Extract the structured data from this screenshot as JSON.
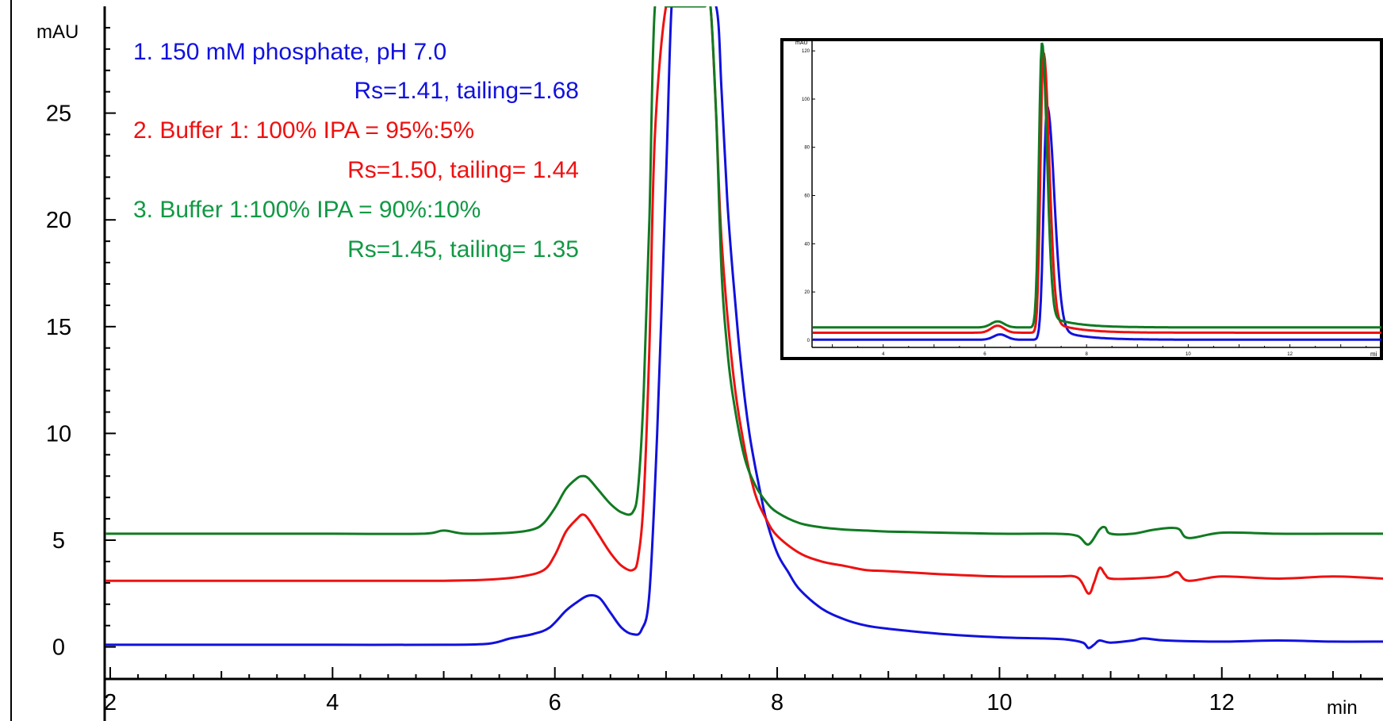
{
  "chart_data": {
    "type": "line",
    "xlabel": "min",
    "ylabel": "mAU",
    "xlim": [
      1.95,
      13.45
    ],
    "ylim": [
      -1.5,
      30.0
    ],
    "x_ticks": [
      "2",
      "4",
      "6",
      "8",
      "10",
      "12"
    ],
    "y_ticks": [
      "0",
      "5",
      "10",
      "15",
      "20",
      "25"
    ],
    "grid": false,
    "legend_position": "top-left",
    "legend": [
      {
        "line1": "1.  150 mM phosphate, pH 7.0",
        "line2": "Rs=1.41, tailing=1.68",
        "color": "#1111dd"
      },
      {
        "line1": "2.  Buffer 1: 100% IPA = 95%:5%",
        "line2": "Rs=1.50, tailing= 1.44",
        "color": "#ee1111"
      },
      {
        "line1": "3.  Buffer 1:100% IPA = 90%:10%",
        "line2": "Rs=1.45, tailing= 1.35",
        "color": "#119944"
      }
    ],
    "series": [
      {
        "color": "#1111dd",
        "x": [
          1.95,
          3.0,
          4.0,
          5.0,
          5.4,
          5.6,
          5.8,
          5.95,
          6.1,
          6.2,
          6.3,
          6.4,
          6.5,
          6.6,
          6.7,
          6.78,
          6.85,
          6.92,
          7.0,
          7.05,
          7.1,
          7.2,
          7.3,
          7.45,
          7.5,
          7.55,
          7.6,
          7.65,
          7.7,
          7.75,
          7.8,
          7.85,
          7.9,
          8.0,
          8.1,
          8.2,
          8.4,
          8.6,
          8.8,
          9.0,
          9.5,
          10.0,
          10.4,
          10.6,
          10.75,
          10.8,
          10.85,
          10.9,
          11.0,
          11.2,
          11.3,
          11.5,
          12.0,
          12.5,
          13.0,
          13.45
        ],
        "y": [
          0.1,
          0.1,
          0.1,
          0.1,
          0.15,
          0.4,
          0.6,
          0.9,
          1.7,
          2.1,
          2.4,
          2.3,
          1.6,
          0.9,
          0.6,
          0.8,
          2.5,
          10.0,
          22.0,
          30.0,
          30.0,
          30.0,
          30.0,
          30.0,
          26.0,
          21.0,
          17.5,
          14.5,
          12.0,
          10.0,
          8.5,
          7.2,
          6.0,
          4.4,
          3.5,
          2.7,
          1.8,
          1.3,
          1.0,
          0.85,
          0.6,
          0.45,
          0.4,
          0.35,
          0.2,
          -0.05,
          0.1,
          0.3,
          0.2,
          0.3,
          0.4,
          0.3,
          0.25,
          0.3,
          0.25,
          0.25
        ]
      },
      {
        "color": "#ee1111",
        "x": [
          1.95,
          3.0,
          4.0,
          5.0,
          5.4,
          5.7,
          5.9,
          6.0,
          6.1,
          6.2,
          6.25,
          6.3,
          6.4,
          6.5,
          6.6,
          6.7,
          6.75,
          6.8,
          6.85,
          6.9,
          7.0,
          7.1,
          7.2,
          7.3,
          7.35,
          7.4,
          7.45,
          7.5,
          7.6,
          7.7,
          7.8,
          7.9,
          8.0,
          8.2,
          8.4,
          8.6,
          8.8,
          9.0,
          9.5,
          10.0,
          10.5,
          10.7,
          10.8,
          10.85,
          10.9,
          10.95,
          11.0,
          11.2,
          11.5,
          11.6,
          11.7,
          12.0,
          12.5,
          13.0,
          13.45
        ],
        "y": [
          3.1,
          3.1,
          3.1,
          3.1,
          3.15,
          3.3,
          3.6,
          4.3,
          5.4,
          6.0,
          6.2,
          6.0,
          5.2,
          4.4,
          3.8,
          3.6,
          4.2,
          7.0,
          14.0,
          24.0,
          30.0,
          30.0,
          30.0,
          30.0,
          30.0,
          30.0,
          25.0,
          19.0,
          13.0,
          9.5,
          7.2,
          6.0,
          5.2,
          4.4,
          4.0,
          3.8,
          3.6,
          3.55,
          3.4,
          3.3,
          3.3,
          3.25,
          2.5,
          3.0,
          3.7,
          3.4,
          3.2,
          3.2,
          3.3,
          3.5,
          3.1,
          3.3,
          3.2,
          3.3,
          3.2
        ]
      },
      {
        "color": "#117a22",
        "x": [
          1.95,
          3.0,
          4.0,
          4.8,
          5.0,
          5.2,
          5.6,
          5.8,
          5.9,
          6.0,
          6.1,
          6.2,
          6.25,
          6.3,
          6.4,
          6.5,
          6.6,
          6.7,
          6.75,
          6.8,
          6.85,
          6.9,
          7.0,
          7.1,
          7.2,
          7.3,
          7.35,
          7.4,
          7.45,
          7.5,
          7.55,
          7.6,
          7.7,
          7.8,
          7.9,
          8.0,
          8.2,
          8.4,
          8.6,
          8.8,
          9.0,
          9.5,
          10.0,
          10.5,
          10.7,
          10.8,
          10.9,
          10.95,
          11.0,
          11.2,
          11.4,
          11.6,
          11.7,
          12.0,
          12.5,
          13.0,
          13.45
        ],
        "y": [
          5.3,
          5.3,
          5.3,
          5.3,
          5.45,
          5.3,
          5.35,
          5.5,
          5.8,
          6.5,
          7.4,
          7.9,
          8.0,
          7.9,
          7.3,
          6.7,
          6.3,
          6.3,
          7.5,
          12.0,
          20.0,
          30.0,
          30.0,
          30.0,
          30.0,
          30.0,
          30.0,
          30.0,
          25.0,
          17.5,
          14.0,
          11.8,
          9.0,
          7.6,
          6.8,
          6.3,
          5.8,
          5.6,
          5.5,
          5.45,
          5.4,
          5.35,
          5.3,
          5.3,
          5.2,
          4.8,
          5.5,
          5.6,
          5.3,
          5.3,
          5.5,
          5.55,
          5.1,
          5.35,
          5.3,
          5.3,
          5.3
        ]
      }
    ]
  },
  "inset": {
    "ylabel": "mAU",
    "xlabel": "mi",
    "xlim": [
      2.6,
      13.8
    ],
    "ylim": [
      -3,
      124
    ],
    "x_ticks": [
      "4",
      "6",
      "8",
      "10",
      "12"
    ],
    "y_ticks": [
      "0",
      "20",
      "40",
      "60",
      "80",
      "100",
      "120"
    ]
  }
}
